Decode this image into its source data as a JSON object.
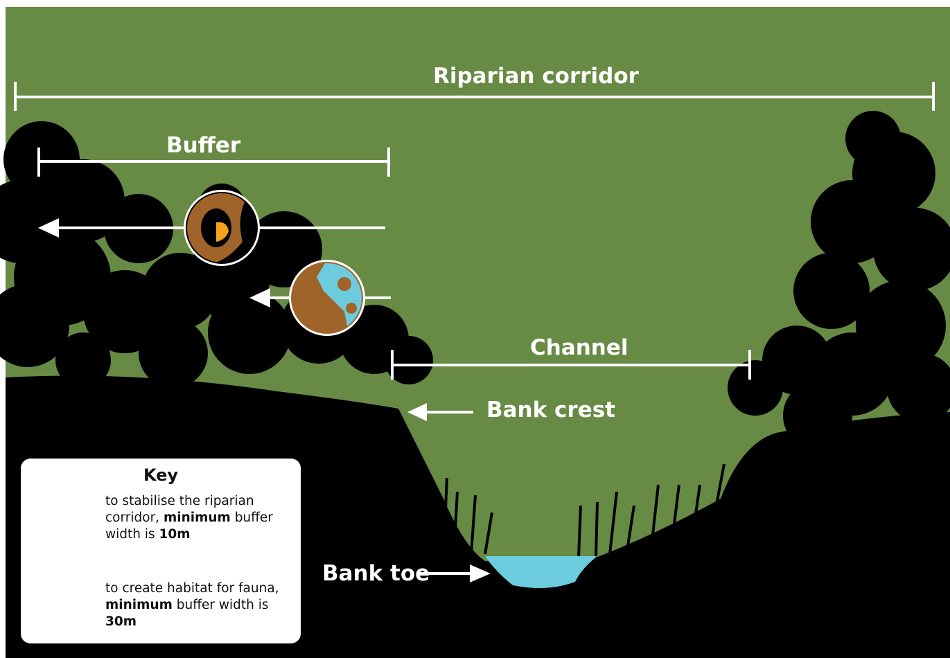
{
  "labels": {
    "riparian_corridor": "Riparian corridor",
    "buffer": "Buffer",
    "channel": "Channel",
    "bank_crest": "Bank crest",
    "bank_toe": "Bank toe"
  },
  "key": {
    "title": "Key",
    "items": [
      {
        "parts": [
          {
            "text": "to stabilise the riparian corridor, "
          },
          {
            "text": "minimum",
            "bold": true
          },
          {
            "text": " buffer width is "
          },
          {
            "text": "10m",
            "bold": true
          }
        ]
      },
      {
        "parts": [
          {
            "text": "to create habitat for fauna, "
          },
          {
            "text": "minimum",
            "bold": true
          },
          {
            "text": " buffer width is "
          },
          {
            "text": "30m",
            "bold": true
          }
        ]
      }
    ]
  }
}
